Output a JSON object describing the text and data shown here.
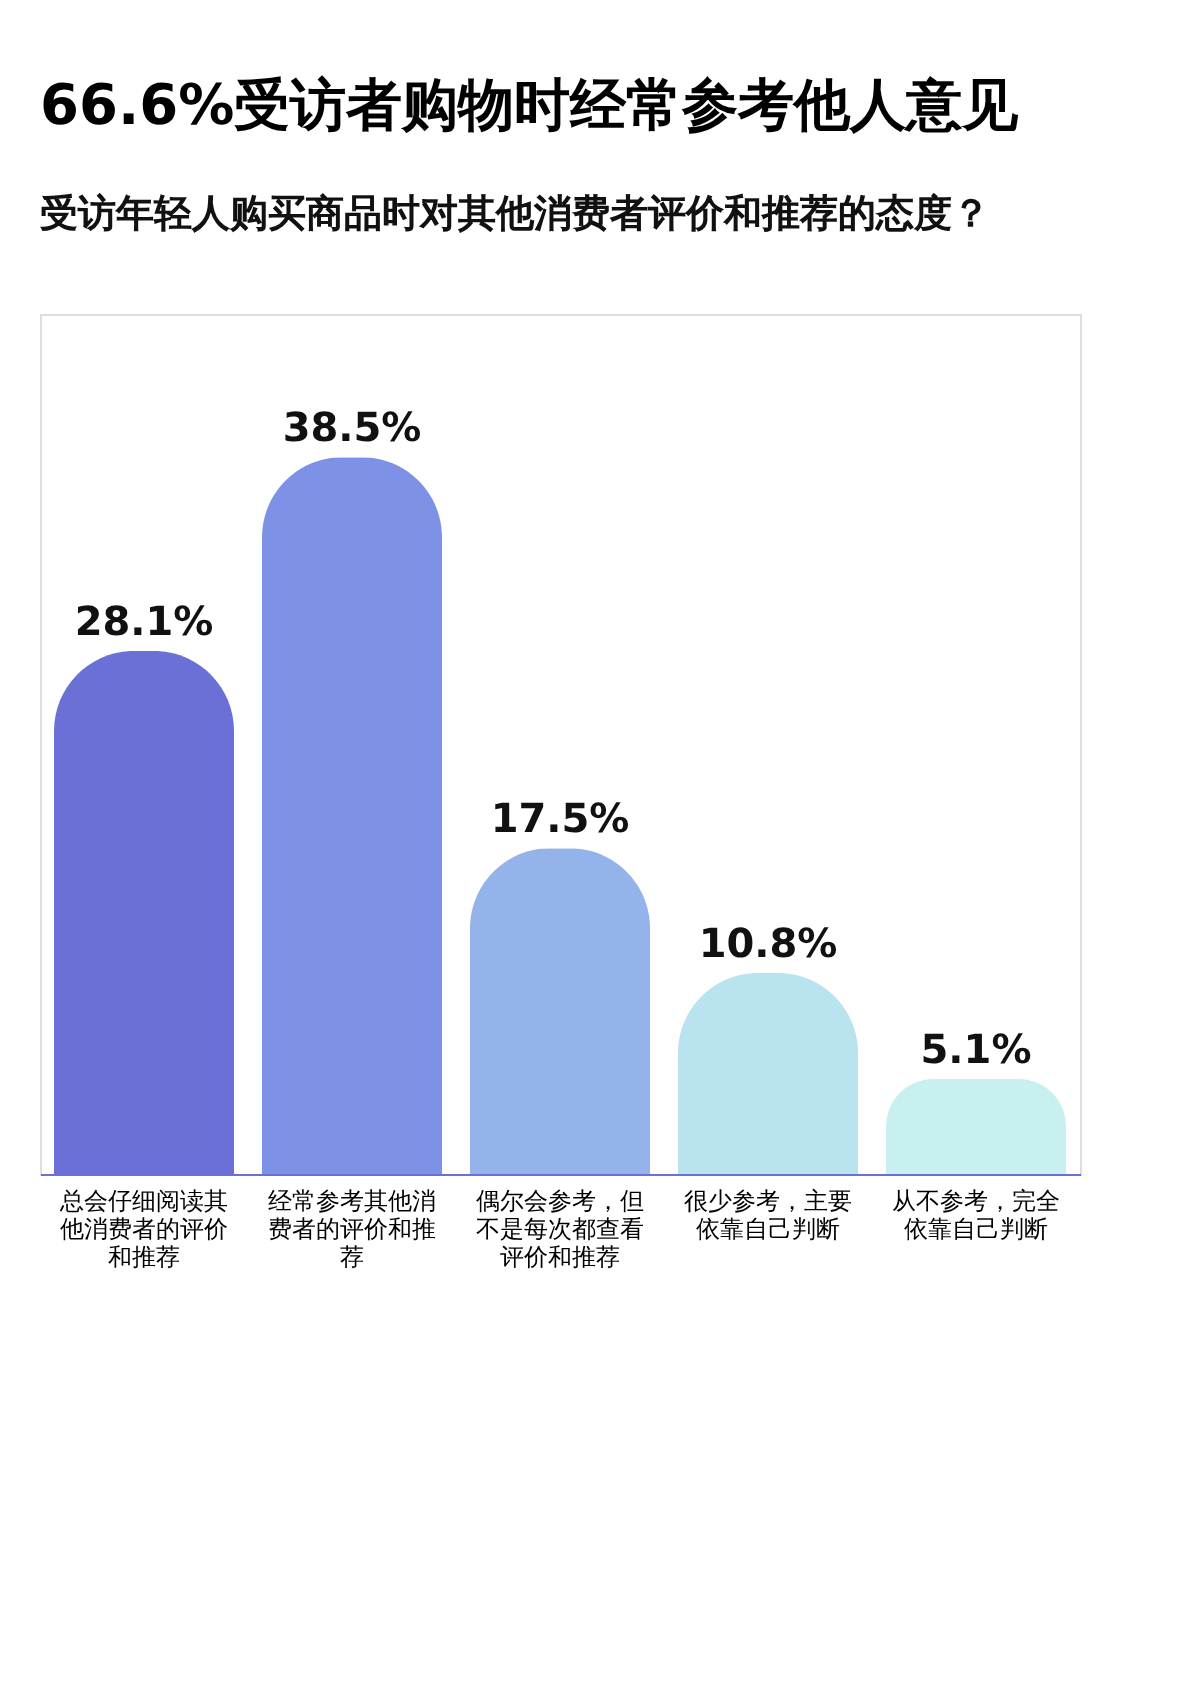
{
  "chart_data": {
    "type": "bar",
    "title": "66.6%受访者购物时经常参考他人意见",
    "subtitle": "受访年轻人购买商品时对其他消费者评价和推荐的态度？",
    "categories": [
      "总会仔细阅读其他消费者的评价和推荐",
      "经常参考其他消费者的评价和推荐",
      "偶尔会参考，但不是每次都查看评价和推荐",
      "很少参考，主要依靠自己判断",
      "从不参考，完全依靠自己判断"
    ],
    "values": [
      28.1,
      38.5,
      17.5,
      10.8,
      5.1
    ],
    "value_labels": [
      "28.1%",
      "38.5%",
      "17.5%",
      "10.8%",
      "5.1%"
    ],
    "colors": [
      "#6a70d6",
      "#7d92e6",
      "#93b3ea",
      "#b9e3ef",
      "#c8f0f0"
    ]
  }
}
